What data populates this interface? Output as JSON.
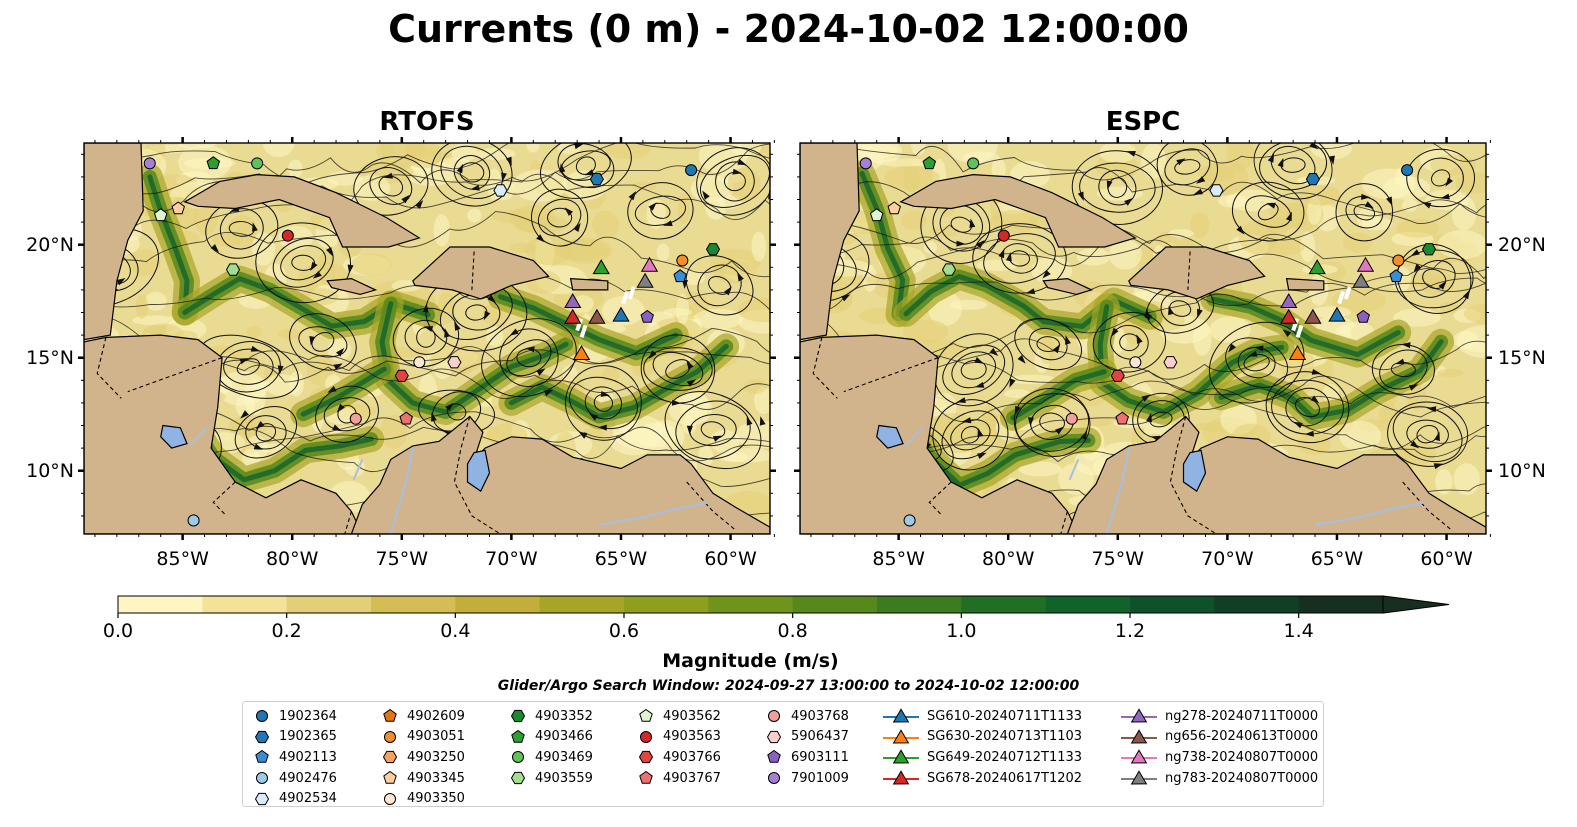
{
  "title": "Currents (0 m) - 2024-10-02 12:00:00",
  "panels": [
    {
      "title": "RTOFS"
    },
    {
      "title": "ESPC"
    }
  ],
  "axes": {
    "lon_ticks": [
      "85°W",
      "80°W",
      "75°W",
      "70°W",
      "65°W",
      "60°W"
    ],
    "lat_ticks": [
      "20°N",
      "15°N",
      "10°N"
    ],
    "lon_range": [
      -89.5,
      -58.2
    ],
    "lat_range": [
      7.2,
      24.5
    ]
  },
  "colorbar": {
    "label": "Magnitude (m/s)",
    "ticks": [
      "0.0",
      "0.2",
      "0.4",
      "0.6",
      "0.8",
      "1.0",
      "1.2",
      "1.4"
    ],
    "range": [
      0,
      1.5
    ],
    "extend": "max",
    "colors": [
      "#fdf6c3",
      "#f2e29a",
      "#e3cf77",
      "#d5bd56",
      "#c3ad3b",
      "#a8a526",
      "#8ea01b",
      "#6f9419",
      "#56881c",
      "#3c7b20",
      "#226e25",
      "#12622c",
      "#0e522a",
      "#113f25",
      "#162f21"
    ]
  },
  "search_window": "Glider/Argo Search Window: 2024-09-27 13:00:00 to 2024-10-02 12:00:00",
  "colors": {
    "land": "#d2b48c",
    "lake": "#8fb3e3",
    "river": "#a7bfe0",
    "ocean_base": "#eadb93"
  },
  "legend": {
    "columns": [
      [
        {
          "label": "1902364",
          "marker": "circle",
          "color": "#1f77b4"
        },
        {
          "label": "1902365",
          "marker": "hexagon",
          "color": "#1f77b4"
        },
        {
          "label": "4902113",
          "marker": "pentagon",
          "color": "#3a8cd6"
        },
        {
          "label": "4902476",
          "marker": "circle",
          "color": "#9ecae9"
        },
        {
          "label": "4902534",
          "marker": "hexagon",
          "color": "#d9ecfa"
        }
      ],
      [
        {
          "label": "4902609",
          "marker": "pentagon",
          "color": "#e8730c"
        },
        {
          "label": "4903051",
          "marker": "circle",
          "color": "#f28e2b"
        },
        {
          "label": "4903250",
          "marker": "hexagon",
          "color": "#f7a35c"
        },
        {
          "label": "4903345",
          "marker": "pentagon",
          "color": "#fbcf9f"
        },
        {
          "label": "4903350",
          "marker": "circle",
          "color": "#fde8cf"
        }
      ],
      [
        {
          "label": "4903352",
          "marker": "hexagon",
          "color": "#1b8a2e"
        },
        {
          "label": "4903466",
          "marker": "pentagon",
          "color": "#2ca02c"
        },
        {
          "label": "4903469",
          "marker": "circle",
          "color": "#5ec45a"
        },
        {
          "label": "4903559",
          "marker": "hexagon",
          "color": "#a3dd8f"
        }
      ],
      [
        {
          "label": "4903562",
          "marker": "pentagon",
          "color": "#dff5d2"
        },
        {
          "label": "4903563",
          "marker": "circle",
          "color": "#d62728"
        },
        {
          "label": "4903766",
          "marker": "hexagon",
          "color": "#e0463f"
        },
        {
          "label": "4903767",
          "marker": "pentagon",
          "color": "#f07070"
        }
      ],
      [
        {
          "label": "4903768",
          "marker": "circle",
          "color": "#f4a09a"
        },
        {
          "label": "5906437",
          "marker": "hexagon",
          "color": "#fbd0cc"
        },
        {
          "label": "6903111",
          "marker": "pentagon",
          "color": "#8c5fc2"
        },
        {
          "label": "7901009",
          "marker": "circle",
          "color": "#a77fd6"
        }
      ],
      [
        {
          "label": "SG610-20240711T1133",
          "marker": "triangle",
          "color": "#1f77b4"
        },
        {
          "label": "SG630-20240713T1103",
          "marker": "triangle",
          "color": "#ff7f0e"
        },
        {
          "label": "SG649-20240712T1133",
          "marker": "triangle",
          "color": "#2ca02c"
        },
        {
          "label": "SG678-20240617T1202",
          "marker": "triangle",
          "color": "#d62728"
        }
      ],
      [
        {
          "label": "ng278-20240711T0000",
          "marker": "triangle",
          "color": "#9467bd"
        },
        {
          "label": "ng656-20240613T0000",
          "marker": "triangle",
          "color": "#8c564b"
        },
        {
          "label": "ng738-20240807T0000",
          "marker": "triangle",
          "color": "#e377c2"
        },
        {
          "label": "ng783-20240807T0000",
          "marker": "triangle",
          "color": "#7f7f7f"
        }
      ]
    ]
  },
  "argo_floats": [
    {
      "id": "7901009",
      "lon": -86.5,
      "lat": 23.6
    },
    {
      "id": "4903466",
      "lon": -83.6,
      "lat": 23.6
    },
    {
      "id": "4903469",
      "lon": -81.6,
      "lat": 23.6
    },
    {
      "id": "1902364",
      "lon": -61.8,
      "lat": 23.3
    },
    {
      "id": "1902365",
      "lon": -66.1,
      "lat": 22.9
    },
    {
      "id": "4902534",
      "lon": -70.5,
      "lat": 22.4
    },
    {
      "id": "4903345",
      "lon": -85.2,
      "lat": 21.6
    },
    {
      "id": "4903562",
      "lon": -86.0,
      "lat": 21.3
    },
    {
      "id": "4903563",
      "lon": -80.2,
      "lat": 20.4
    },
    {
      "id": "4903051",
      "lon": -62.2,
      "lat": 19.3
    },
    {
      "id": "4903352",
      "lon": -60.8,
      "lat": 19.8
    },
    {
      "id": "4903559",
      "lon": -82.7,
      "lat": 18.9
    },
    {
      "id": "4902113",
      "lon": -62.3,
      "lat": 18.6
    },
    {
      "id": "6903111",
      "lon": -63.8,
      "lat": 16.8
    },
    {
      "id": "4903350",
      "lon": -74.2,
      "lat": 14.8
    },
    {
      "id": "5906437",
      "lon": -72.6,
      "lat": 14.8
    },
    {
      "id": "4903766",
      "lon": -75.0,
      "lat": 14.2
    },
    {
      "id": "4903768",
      "lon": -77.1,
      "lat": 12.3
    },
    {
      "id": "4903767",
      "lon": -74.8,
      "lat": 12.3
    },
    {
      "id": "4902476",
      "lon": -84.5,
      "lat": 7.8
    }
  ],
  "gliders": [
    {
      "id": "SG649-20240712T1133",
      "lon": -65.9,
      "lat": 19.0,
      "color": "#2ca02c"
    },
    {
      "id": "ng738-20240807T0000",
      "lon": -63.7,
      "lat": 19.1,
      "color": "#e377c2"
    },
    {
      "id": "ng783-20240807T0000",
      "lon": -63.9,
      "lat": 18.4,
      "color": "#7f7f7f"
    },
    {
      "id": "ng278-20240711T0000",
      "lon": -67.2,
      "lat": 17.5,
      "color": "#9467bd"
    },
    {
      "id": "SG678-20240617T1202",
      "lon": -67.2,
      "lat": 16.8,
      "color": "#d62728"
    },
    {
      "id": "ng656-20240613T0000",
      "lon": -66.1,
      "lat": 16.8,
      "color": "#8c564b"
    },
    {
      "id": "SG610-20240711T1133",
      "lon": -65.0,
      "lat": 16.9,
      "color": "#1f77b4"
    },
    {
      "id": "SG630-20240713T1103",
      "lon": -66.8,
      "lat": 15.2,
      "color": "#ff7f0e"
    }
  ]
}
